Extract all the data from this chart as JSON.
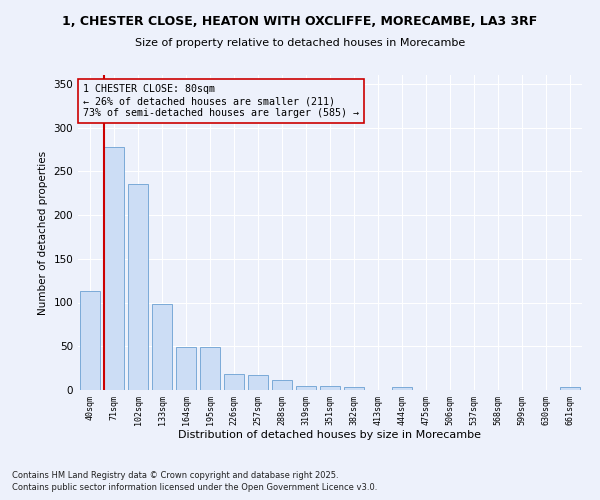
{
  "title1": "1, CHESTER CLOSE, HEATON WITH OXCLIFFE, MORECAMBE, LA3 3RF",
  "title2": "Size of property relative to detached houses in Morecambe",
  "xlabel": "Distribution of detached houses by size in Morecambe",
  "ylabel": "Number of detached properties",
  "bar_color": "#ccddf5",
  "bar_edge_color": "#7aaad8",
  "categories": [
    "40sqm",
    "71sqm",
    "102sqm",
    "133sqm",
    "164sqm",
    "195sqm",
    "226sqm",
    "257sqm",
    "288sqm",
    "319sqm",
    "351sqm",
    "382sqm",
    "413sqm",
    "444sqm",
    "475sqm",
    "506sqm",
    "537sqm",
    "568sqm",
    "599sqm",
    "630sqm",
    "661sqm"
  ],
  "values": [
    113,
    278,
    235,
    98,
    49,
    49,
    18,
    17,
    11,
    5,
    5,
    3,
    0,
    3,
    0,
    0,
    0,
    0,
    0,
    0,
    3
  ],
  "ylim": [
    0,
    360
  ],
  "yticks": [
    0,
    50,
    100,
    150,
    200,
    250,
    300,
    350
  ],
  "vline_x_idx": 1,
  "annotation_text": "1 CHESTER CLOSE: 80sqm\n← 26% of detached houses are smaller (211)\n73% of semi-detached houses are larger (585) →",
  "vline_color": "#cc0000",
  "background_color": "#edf1fb",
  "grid_color": "#ffffff",
  "footer1": "Contains HM Land Registry data © Crown copyright and database right 2025.",
  "footer2": "Contains public sector information licensed under the Open Government Licence v3.0."
}
